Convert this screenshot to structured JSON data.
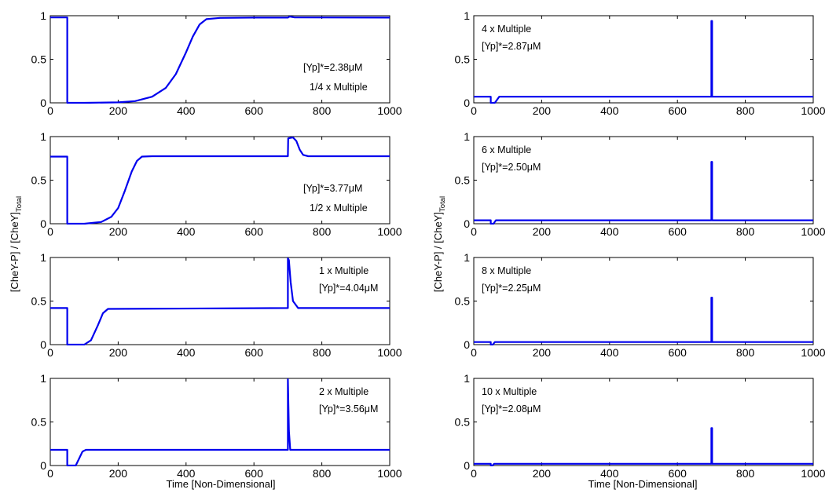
{
  "figure": {
    "xlabel": "Time [Non-Dimensional]",
    "ylabel_main": "[CheY-P] / [CheY]",
    "ylabel_sub": "Total",
    "line_color": "#0000ee"
  },
  "chart_data": [
    {
      "type": "line",
      "multiple_label": "1/4 x Multiple",
      "yp_label": "[Yp]*=2.38μM",
      "note_position": "bottom-right",
      "xlim": [
        0,
        1000
      ],
      "ylim": [
        0,
        1
      ],
      "xticks": [
        0,
        200,
        400,
        600,
        800,
        1000
      ],
      "yticks": [
        0,
        0.5,
        1
      ],
      "ytick_labels": [
        "0",
        "0.5",
        "1"
      ],
      "series": [
        {
          "x": [
            0,
            50,
            50,
            100,
            200,
            250,
            300,
            340,
            370,
            400,
            420,
            440,
            460,
            500,
            600,
            700,
            705,
            720,
            1000
          ],
          "y": [
            0.98,
            0.98,
            0,
            0,
            0.005,
            0.02,
            0.07,
            0.17,
            0.33,
            0.58,
            0.76,
            0.9,
            0.96,
            0.975,
            0.978,
            0.978,
            0.99,
            0.98,
            0.978
          ]
        }
      ]
    },
    {
      "type": "line",
      "multiple_label": "4 x Multiple",
      "yp_label": "[Yp]*=2.87μM",
      "note_position": "top-left",
      "xlim": [
        0,
        1000
      ],
      "ylim": [
        0,
        1
      ],
      "xticks": [
        0,
        200,
        400,
        600,
        800,
        1000
      ],
      "yticks": [
        0,
        0.5,
        1
      ],
      "ytick_labels": [
        "0",
        "0.5",
        "1"
      ],
      "series": [
        {
          "x": [
            0,
            50,
            50,
            62,
            75,
            700,
            700,
            702,
            702,
            1000
          ],
          "y": [
            0.07,
            0.07,
            0,
            0,
            0.07,
            0.07,
            0.94,
            0.94,
            0.07,
            0.07
          ]
        }
      ]
    },
    {
      "type": "line",
      "multiple_label": "1/2 x Multiple",
      "yp_label": "[Yp]*=3.77μM",
      "note_position": "bottom-right",
      "xlim": [
        0,
        1000
      ],
      "ylim": [
        0,
        1
      ],
      "xticks": [
        0,
        200,
        400,
        600,
        800,
        1000
      ],
      "yticks": [
        0,
        0.5,
        1
      ],
      "ytick_labels": [
        "0",
        "0.5",
        "1"
      ],
      "series": [
        {
          "x": [
            0,
            50,
            50,
            100,
            150,
            180,
            200,
            220,
            240,
            255,
            270,
            300,
            700,
            701,
            715,
            725,
            735,
            745,
            760,
            1000
          ],
          "y": [
            0.77,
            0.77,
            0,
            0,
            0.02,
            0.08,
            0.18,
            0.38,
            0.6,
            0.72,
            0.77,
            0.775,
            0.775,
            0.98,
            0.99,
            0.95,
            0.85,
            0.79,
            0.775,
            0.775
          ]
        }
      ]
    },
    {
      "type": "line",
      "multiple_label": "6 x Multiple",
      "yp_label": "[Yp]*=2.50μM",
      "note_position": "top-left",
      "xlim": [
        0,
        1000
      ],
      "ylim": [
        0,
        1
      ],
      "xticks": [
        0,
        200,
        400,
        600,
        800,
        1000
      ],
      "yticks": [
        0,
        0.5,
        1
      ],
      "ytick_labels": [
        "0",
        "0.5",
        "1"
      ],
      "series": [
        {
          "x": [
            0,
            50,
            50,
            58,
            65,
            700,
            700,
            702,
            702,
            1000
          ],
          "y": [
            0.04,
            0.04,
            0,
            0,
            0.04,
            0.04,
            0.71,
            0.71,
            0.04,
            0.04
          ]
        }
      ]
    },
    {
      "type": "line",
      "multiple_label": "1 x Multiple",
      "yp_label": "[Yp]*=4.04μM",
      "note_position": "top-right",
      "xlim": [
        0,
        1000
      ],
      "ylim": [
        0,
        1
      ],
      "xticks": [
        0,
        200,
        400,
        600,
        800,
        1000
      ],
      "yticks": [
        0,
        0.5,
        1
      ],
      "ytick_labels": [
        "0",
        "0.5",
        "1"
      ],
      "series": [
        {
          "x": [
            0,
            50,
            50,
            100,
            120,
            140,
            155,
            170,
            700,
            700,
            703,
            708,
            715,
            730,
            1000
          ],
          "y": [
            0.42,
            0.42,
            0,
            0,
            0.05,
            0.22,
            0.36,
            0.41,
            0.42,
            0.99,
            0.97,
            0.72,
            0.5,
            0.42,
            0.42
          ]
        }
      ]
    },
    {
      "type": "line",
      "multiple_label": "8 x Multiple",
      "yp_label": "[Yp]*=2.25μM",
      "note_position": "top-left",
      "xlim": [
        0,
        1000
      ],
      "ylim": [
        0,
        1
      ],
      "xticks": [
        0,
        200,
        400,
        600,
        800,
        1000
      ],
      "yticks": [
        0,
        0.5,
        1
      ],
      "ytick_labels": [
        "0",
        "0.5",
        "1"
      ],
      "series": [
        {
          "x": [
            0,
            50,
            50,
            56,
            62,
            700,
            700,
            702,
            702,
            1000
          ],
          "y": [
            0.03,
            0.03,
            0,
            0,
            0.03,
            0.03,
            0.54,
            0.54,
            0.03,
            0.03
          ]
        }
      ]
    },
    {
      "type": "line",
      "multiple_label": "2 x Multiple",
      "yp_label": "[Yp]*=3.56μM",
      "note_position": "top-right",
      "xlim": [
        0,
        1000
      ],
      "ylim": [
        0,
        1
      ],
      "xticks": [
        0,
        200,
        400,
        600,
        800,
        1000
      ],
      "yticks": [
        0,
        0.5,
        1
      ],
      "ytick_labels": [
        "0",
        "0.5",
        "1"
      ],
      "series": [
        {
          "x": [
            0,
            50,
            50,
            75,
            85,
            95,
            105,
            700,
            700,
            703,
            707,
            1000
          ],
          "y": [
            0.18,
            0.18,
            0,
            0,
            0.08,
            0.16,
            0.18,
            0.18,
            0.99,
            0.4,
            0.18,
            0.18
          ]
        }
      ]
    },
    {
      "type": "line",
      "multiple_label": "10 x Multiple",
      "yp_label": "[Yp]*=2.08μM",
      "note_position": "top-left",
      "xlim": [
        0,
        1000
      ],
      "ylim": [
        0,
        1
      ],
      "xticks": [
        0,
        200,
        400,
        600,
        800,
        1000
      ],
      "yticks": [
        0,
        0.5,
        1
      ],
      "ytick_labels": [
        "0",
        "0.5",
        "1"
      ],
      "series": [
        {
          "x": [
            0,
            50,
            50,
            55,
            60,
            700,
            700,
            702,
            702,
            1000
          ],
          "y": [
            0.02,
            0.02,
            0,
            0,
            0.02,
            0.02,
            0.43,
            0.43,
            0.02,
            0.02
          ]
        }
      ]
    }
  ]
}
